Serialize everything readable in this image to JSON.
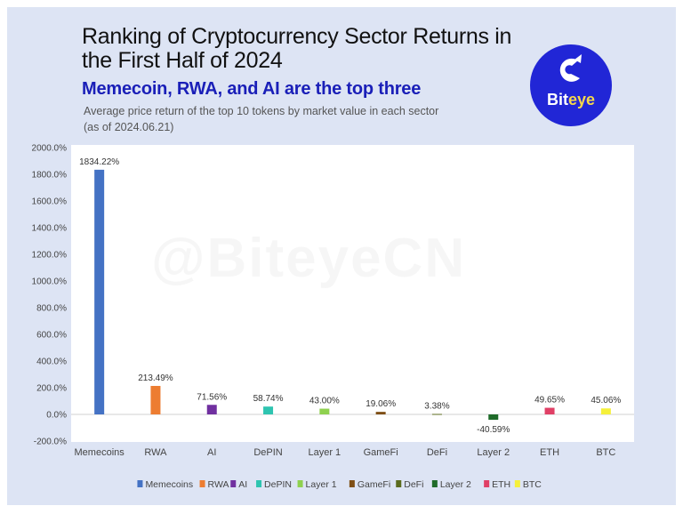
{
  "header": {
    "title": "Ranking of Cryptocurrency Sector Returns in the First Half of 2024",
    "subtitle": "Memecoin, RWA, and AI are the top three",
    "caption_line1": "Average price return of the top 10 tokens by market value in each sector",
    "caption_line2": "(as of 2024.06.21)"
  },
  "logo": {
    "text_main": "Bit",
    "text_accent": "eye",
    "icon": "biteye-swirl-icon",
    "bg_color": "#2126d6",
    "accent_color": "#f5d84a"
  },
  "watermark": "@BiteyeCN",
  "chart_data": {
    "type": "bar",
    "title": "Ranking of Cryptocurrency Sector Returns in the First Half of 2024",
    "subtitle": "Memecoin, RWA, and AI are the top three",
    "xlabel": "",
    "ylabel": "",
    "ylim": [
      -200,
      2000
    ],
    "yticks": [
      -200,
      0,
      200,
      400,
      600,
      800,
      1000,
      1200,
      1400,
      1600,
      1800,
      2000
    ],
    "ytick_labels": [
      "-200.0%",
      "0.0%",
      "200.0%",
      "400.0%",
      "600.0%",
      "800.0%",
      "1000.0%",
      "1200.0%",
      "1400.0%",
      "1600.0%",
      "1800.0%",
      "2000.0%"
    ],
    "grid": false,
    "legend_position": "bottom",
    "categories": [
      "Memecoins",
      "RWA",
      "AI",
      "DePIN",
      "Layer 1",
      "GameFi",
      "DeFi",
      "Layer 2",
      "ETH",
      "BTC"
    ],
    "values": [
      1834.22,
      213.49,
      71.56,
      58.74,
      43.0,
      19.06,
      3.38,
      -40.59,
      49.65,
      45.06
    ],
    "value_labels": [
      "1834.22%",
      "213.49%",
      "71.56%",
      "58.74%",
      "43.00%",
      "19.06%",
      "3.38%",
      "-40.59%",
      "49.65%",
      "45.06%"
    ],
    "legend_labels": [
      "Memecoins",
      "RWA",
      "AI",
      "DePIN",
      "Layer 1",
      "GameFi",
      "DeFi",
      "Layer 2",
      "ETH",
      "BTC"
    ],
    "colors": [
      "#4472c4",
      "#ed7d31",
      "#7030a0",
      "#2ec4b0",
      "#8fd14f",
      "#7f4f15",
      "#5b6b1e",
      "#1f6b2a",
      "#e04066",
      "#f5f03a"
    ]
  }
}
